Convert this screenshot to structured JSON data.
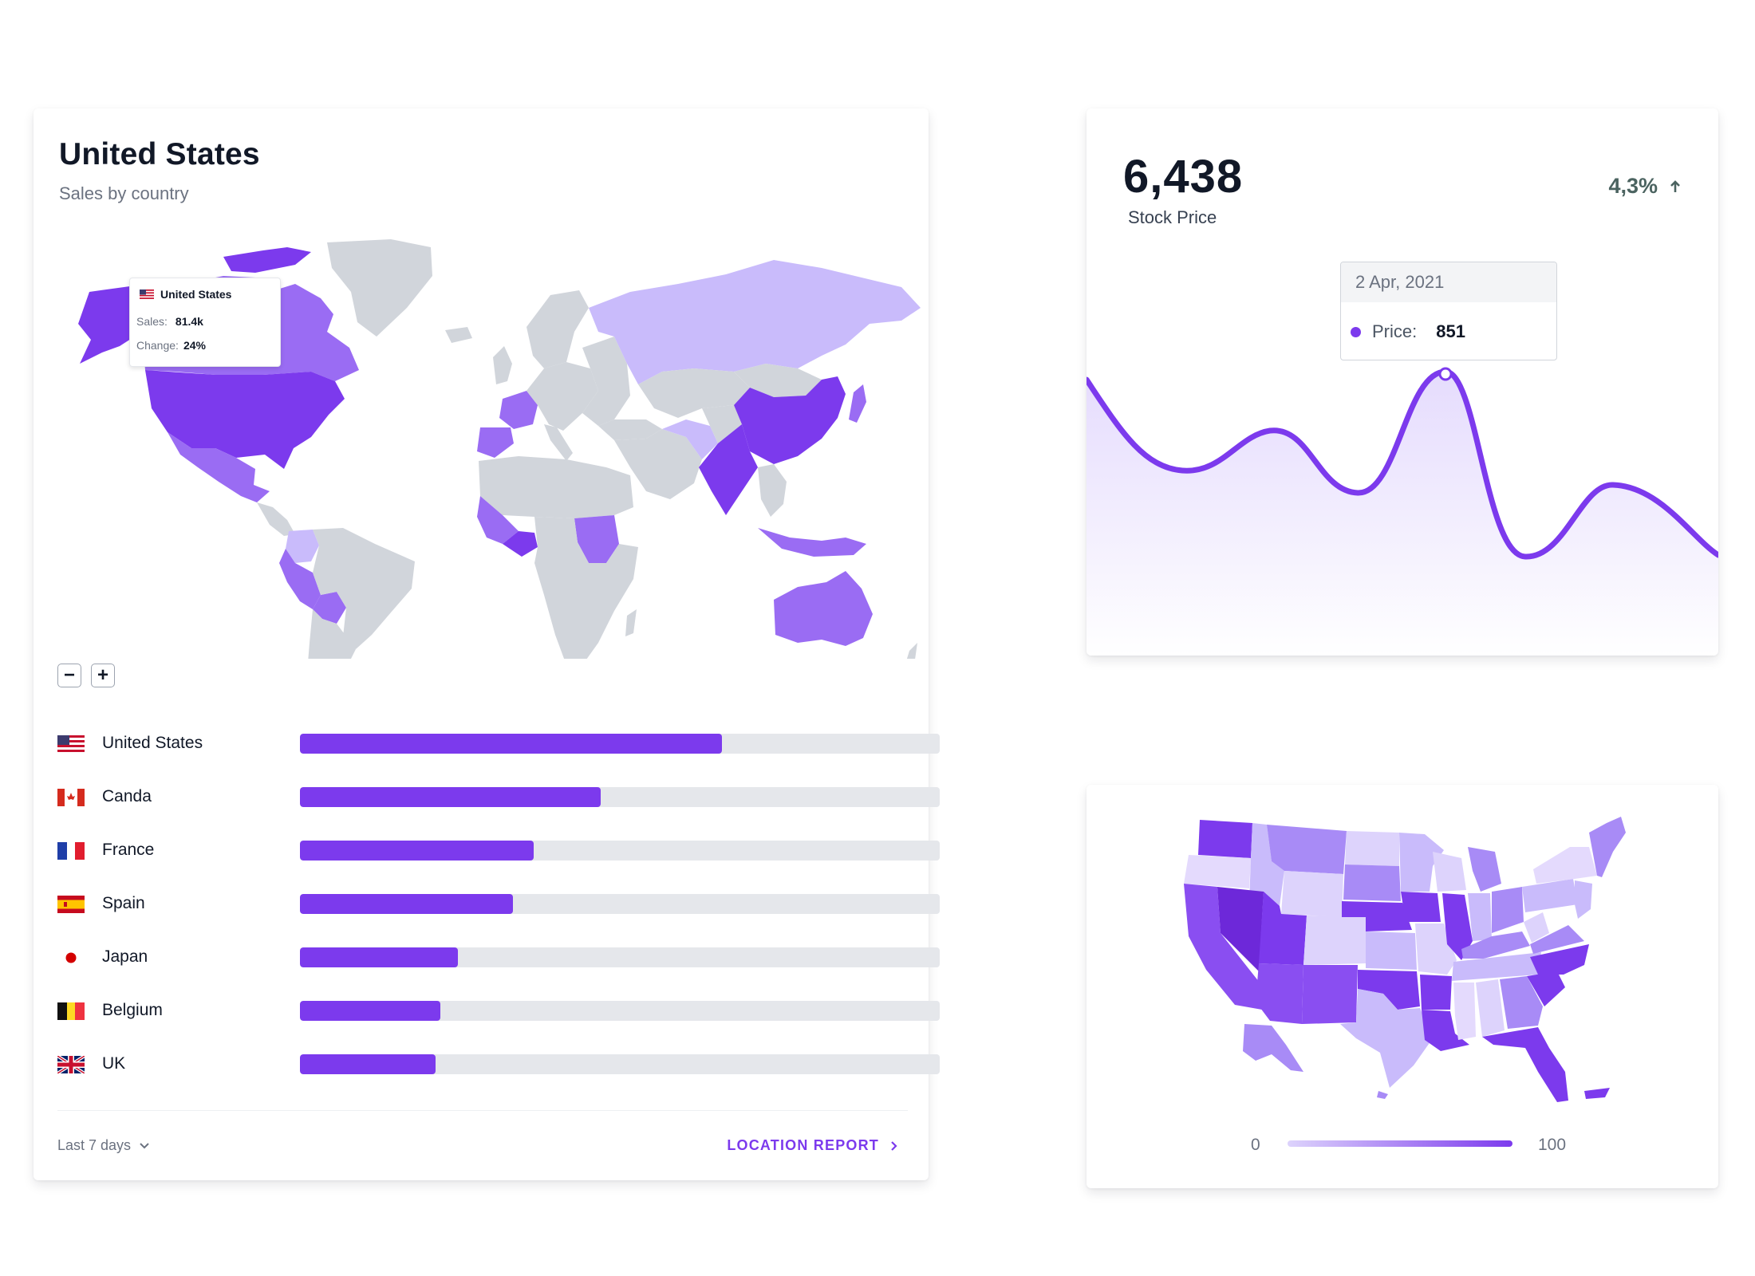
{
  "sales_card": {
    "title": "United States",
    "subtitle": "Sales by country",
    "tooltip": {
      "country": "United States",
      "sales_label": "Sales:",
      "sales_value": "81.4k",
      "change_label": "Change:",
      "change_value": "24%"
    },
    "zoom_out_label": "−",
    "zoom_in_label": "+",
    "countries": [
      {
        "name": "United States",
        "flag": "us-flag-icon",
        "fraction": 0.66
      },
      {
        "name": "Canda",
        "flag": "canada-flag-icon",
        "fraction": 0.47
      },
      {
        "name": "France",
        "flag": "france-flag-icon",
        "fraction": 0.365
      },
      {
        "name": "Spain",
        "flag": "spain-flag-icon",
        "fraction": 0.333
      },
      {
        "name": "Japan",
        "flag": "japan-flag-icon",
        "fraction": 0.247
      },
      {
        "name": "Belgium",
        "flag": "belgium-flag-icon",
        "fraction": 0.22
      },
      {
        "name": "UK",
        "flag": "uk-flag-icon",
        "fraction": 0.212
      }
    ],
    "period_label": "Last 7 days",
    "report_link": "LOCATION REPORT",
    "colors": {
      "accent": "#7c3aed",
      "mid": "#a88bf6",
      "light": "#c9bbfb",
      "land": "#d1d5db"
    }
  },
  "stock_card": {
    "value": "6,438",
    "label": "Stock Price",
    "change": "4,3%",
    "tooltip": {
      "date": "2 Apr, 2021",
      "price_label": "Price:",
      "price_value": "851"
    },
    "colors": {
      "line": "#7c3aed",
      "area_top": "#e4dafd",
      "area_bottom": "#ffffff"
    }
  },
  "us_card": {
    "legend_min": "0",
    "legend_max": "100",
    "colors": {
      "low": "#ddd3fc",
      "high": "#7c3aed"
    }
  }
}
